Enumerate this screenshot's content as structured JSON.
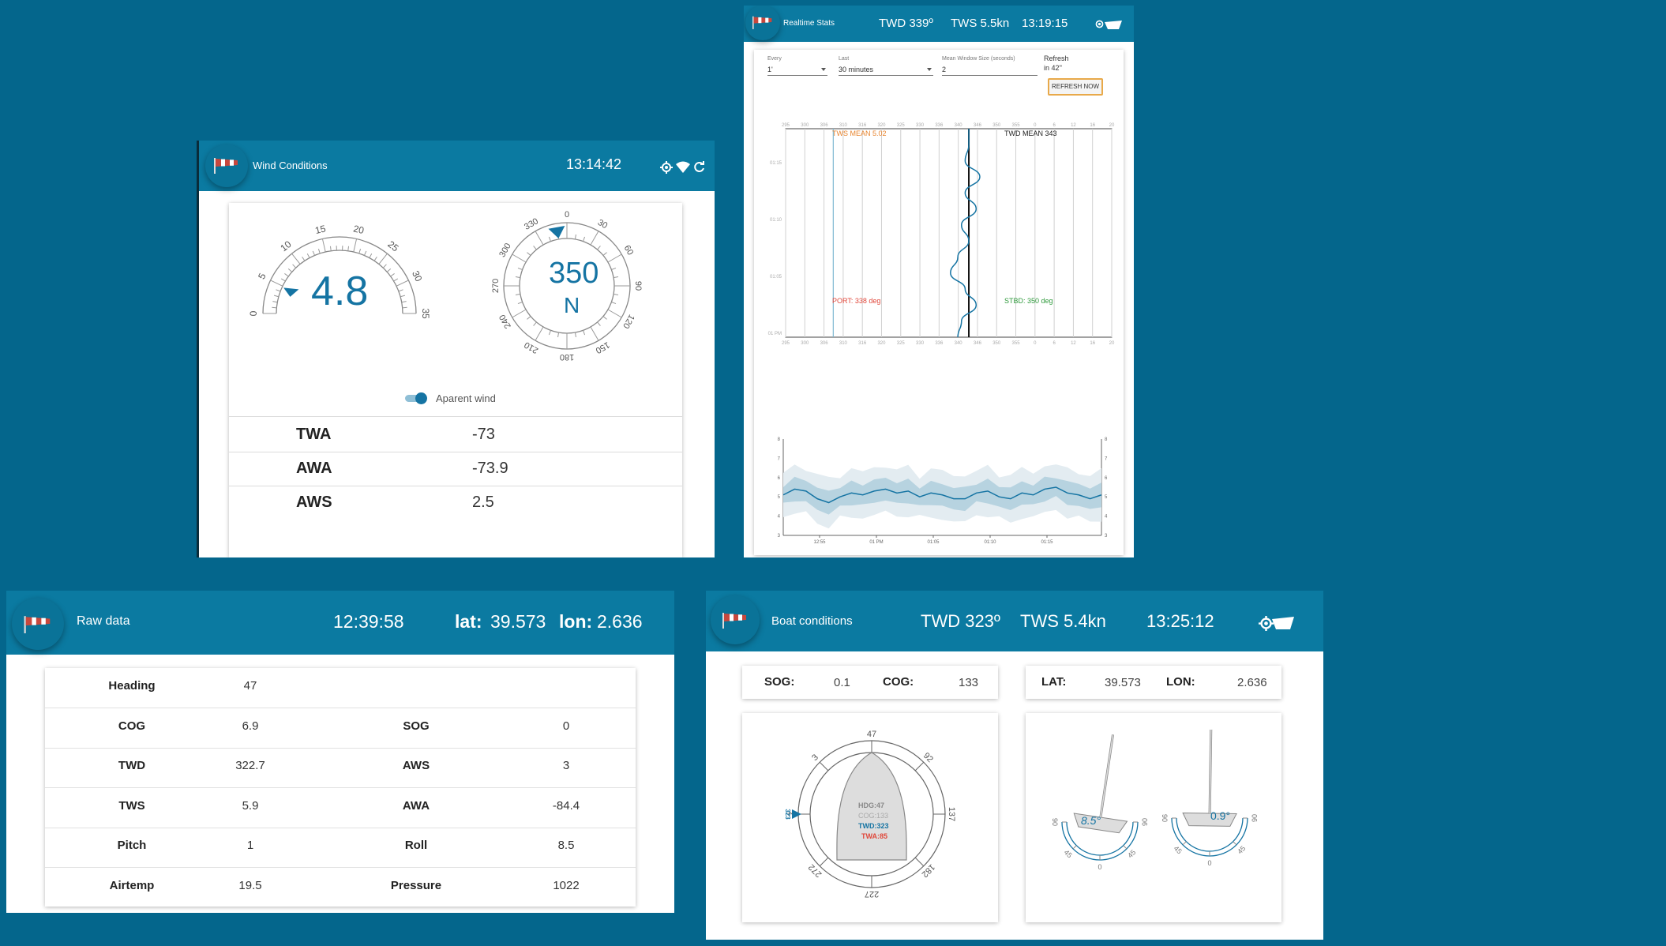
{
  "wind_panel": {
    "title": "Wind Conditions",
    "time": "13:14:42",
    "speed_value": "4.8",
    "speed_ticks": [
      "0",
      "5",
      "10",
      "15",
      "20",
      "25",
      "30",
      "35"
    ],
    "direction_value": "350",
    "direction_cardinal": "N",
    "compass_ticks": [
      "0",
      "30",
      "60",
      "90",
      "120",
      "150",
      "180",
      "210",
      "240",
      "270",
      "300",
      "330"
    ],
    "toggle_label": "Aparent wind",
    "rows": [
      {
        "label": "TWA",
        "value": "-73"
      },
      {
        "label": "AWA",
        "value": "-73.9"
      },
      {
        "label": "AWS",
        "value": "2.5"
      }
    ]
  },
  "stats_panel": {
    "title": "Realtime Stats",
    "twd": "TWD 339º",
    "tws": "TWS 5.5kn",
    "time": "13:19:15",
    "controls": {
      "every_label": "Every",
      "every_value": "1'",
      "last_label": "Last",
      "last_value": "30 minutes",
      "mean_label": "Mean Window Size (seconds)",
      "mean_value": "2",
      "refresh_label": "Refresh",
      "refresh_countdown": "in 42''",
      "refresh_button": "REFRESH NOW"
    },
    "annotations": {
      "tws_mean": "TWS MEAN 5.02",
      "twd_mean": "TWD MEAN 343",
      "port": "PORT: 338 deg",
      "stbd": "STBD: 350 deg"
    }
  },
  "chart_data": [
    {
      "type": "line",
      "title": "",
      "x_ticks": [
        "295",
        "300",
        "306",
        "310",
        "316",
        "320",
        "325",
        "330",
        "336",
        "340",
        "346",
        "350",
        "355",
        "0",
        "6",
        "12",
        "16",
        "20"
      ],
      "y_ticks": [
        "01:15",
        "01:10",
        "01:05",
        "01 PM",
        "12:55"
      ],
      "series": [
        {
          "values": [
            {
              "t": "01:19",
              "twd": 343
            },
            {
              "t": "01:17",
              "twd": 343
            },
            {
              "t": "01:15",
              "twd": 342
            },
            {
              "t": "01:13",
              "twd": 346
            },
            {
              "t": "01:11",
              "twd": 342
            },
            {
              "t": "01:09",
              "twd": 345
            },
            {
              "t": "01:07",
              "twd": 341
            },
            {
              "t": "01:05",
              "twd": 343
            },
            {
              "t": "01:03",
              "twd": 340
            },
            {
              "t": "01:01",
              "twd": 338
            },
            {
              "t": "12:59",
              "twd": 342
            },
            {
              "t": "12:57",
              "twd": 345
            },
            {
              "t": "12:55",
              "twd": 341
            },
            {
              "t": "12:52",
              "twd": 340
            }
          ]
        }
      ]
    },
    {
      "type": "area",
      "title": "",
      "x_ticks": [
        "12:55",
        "01 PM",
        "01:05",
        "01:10",
        "01:15"
      ],
      "y_ticks": [
        "8",
        "7",
        "6",
        "5",
        "4",
        "3"
      ],
      "ylim": [
        3,
        8
      ],
      "series": [
        {
          "values": [
            5.1,
            5.4,
            5.3,
            4.9,
            4.7,
            5.0,
            5.2,
            5.1,
            5.3,
            5.4,
            5.2,
            5.3,
            5.0,
            5.2,
            5.1,
            4.9,
            4.9,
            5.2,
            5.3,
            5.0,
            4.9,
            5.2,
            5.1,
            5.4,
            5.5,
            5.2,
            5.1,
            4.9,
            5.1
          ]
        }
      ]
    }
  ],
  "raw_panel": {
    "title": "Raw data",
    "time": "12:39:58",
    "lat_label": "lat:",
    "lat_value": "39.573",
    "lon_label": "lon:",
    "lon_value": "2.636",
    "rows": [
      {
        "l1": "Heading",
        "v1": "47",
        "l2": "",
        "v2": ""
      },
      {
        "l1": "COG",
        "v1": "6.9",
        "l2": "SOG",
        "v2": "0"
      },
      {
        "l1": "TWD",
        "v1": "322.7",
        "l2": "AWS",
        "v2": "3"
      },
      {
        "l1": "TWS",
        "v1": "5.9",
        "l2": "AWA",
        "v2": "-84.4"
      },
      {
        "l1": "Pitch",
        "v1": "1",
        "l2": "Roll",
        "v2": "8.5"
      },
      {
        "l1": "Airtemp",
        "v1": "19.5",
        "l2": "Pressure",
        "v2": "1022"
      }
    ]
  },
  "boat_panel": {
    "title": "Boat conditions",
    "twd": "TWD 323º",
    "tws": "TWS 5.4kn",
    "time": "13:25:12",
    "sog_label": "SOG:",
    "sog_value": "0.1",
    "cog_label": "COG:",
    "cog_value": "133",
    "lat_label": "LAT:",
    "lat_value": "39.573",
    "lon_label": "LON:",
    "lon_value": "2.636",
    "compass_ticks": [
      "47",
      "92",
      "137",
      "182",
      "227",
      "272",
      "2",
      "3"
    ],
    "hdg": "HDG:47",
    "cog_line": "COG:133",
    "twd_line": "TWD:323",
    "twa_line": "TWA:85",
    "wind_marker": "323",
    "heel_roll": "8.5°",
    "heel_pitch": "0.9°",
    "arc_ticks": [
      "90",
      "45",
      "0",
      "45",
      "90"
    ]
  },
  "colors": {
    "background": "#04668c",
    "header": "#0b7aa1",
    "accent": "#1574a3",
    "port": "#e0473a",
    "stbd": "#2f9a3c",
    "tws_mean": "#e8852f"
  },
  "icons": [
    "windsock-icon",
    "location-target-icon",
    "wifi-icon",
    "refresh-icon",
    "boat-icon",
    "chevron-down-icon"
  ]
}
